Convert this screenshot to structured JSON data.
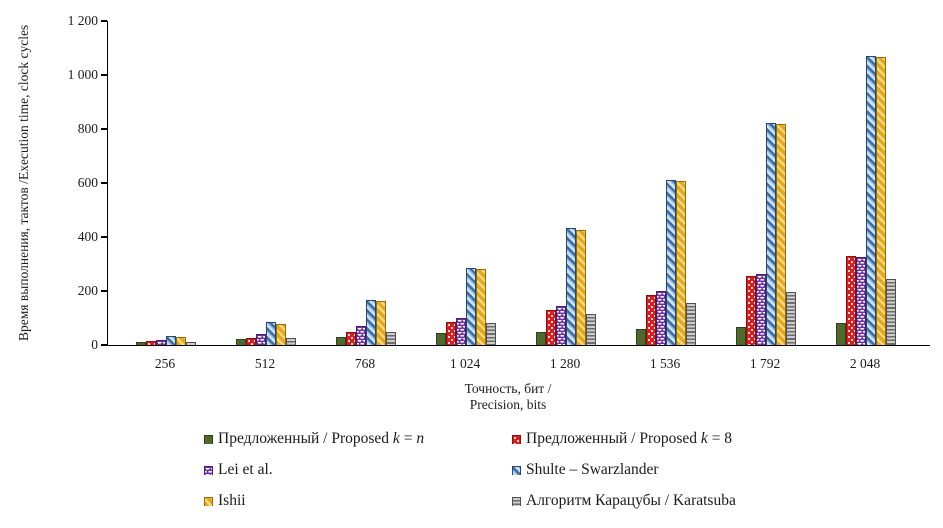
{
  "chart_data": {
    "type": "bar",
    "title": "",
    "categories": [
      "256",
      "512",
      "768",
      "1 024",
      "1 280",
      "1 536",
      "1 792",
      "2 048"
    ],
    "series": [
      {
        "name": "Предложенный / Proposed k = n",
        "pattern": "solid-green",
        "color": "#4e682e",
        "values": [
          12,
          22,
          30,
          45,
          50,
          60,
          68,
          80
        ]
      },
      {
        "name": "Предложенный / Proposed k = 8",
        "pattern": "dotted-red",
        "color": "#dd1d1d",
        "values": [
          14,
          26,
          50,
          85,
          130,
          185,
          255,
          330
        ]
      },
      {
        "name": "Lei et al.",
        "pattern": "dashed-purple",
        "color": "#7030a0",
        "values": [
          20,
          40,
          70,
          100,
          145,
          200,
          262,
          325
        ]
      },
      {
        "name": "Shulte – Swarzlander",
        "pattern": "diagonal-blue",
        "color": "#3c6ea5",
        "values": [
          35,
          85,
          167,
          287,
          432,
          612,
          824,
          1072
        ]
      },
      {
        "name": "Ishii",
        "pattern": "diagonal-gold",
        "color": "#e3a81f",
        "values": [
          30,
          78,
          163,
          280,
          427,
          606,
          818,
          1065
        ]
      },
      {
        "name": "Алгоритм Карацубы / Karatsuba",
        "pattern": "hlines-gray",
        "color": "#6d6d6d",
        "values": [
          10,
          25,
          50,
          80,
          115,
          155,
          197,
          243
        ]
      }
    ],
    "ylim": [
      0,
      1200
    ],
    "ytick_step": 200,
    "yticks": [
      "0",
      "200",
      "400",
      "600",
      "800",
      "1 000",
      "1 200"
    ],
    "xlabel_lines": [
      "Точность, бит /",
      "Precision, bits"
    ],
    "ylabel_lines": [
      "Время выполнения, тактов /",
      "Execution time, clock cycles"
    ],
    "grid": false,
    "legend_position": "bottom",
    "legend_columns": 2
  }
}
